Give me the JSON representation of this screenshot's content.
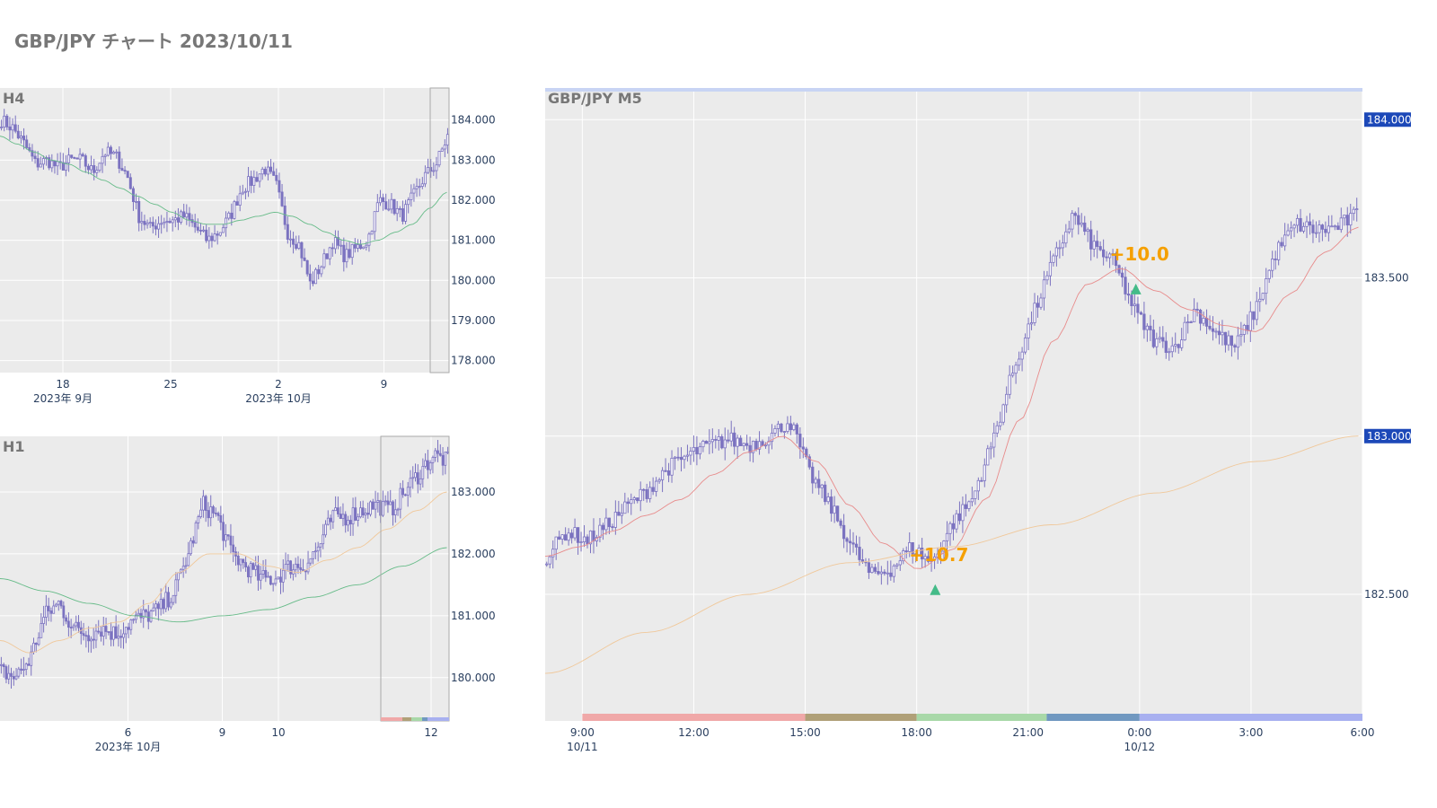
{
  "page": {
    "title": "GBP/JPY チャート 2023/10/11"
  },
  "colors": {
    "plot_bg": "#ebebeb",
    "grid": "#ffffff",
    "candle": "#7b72c0",
    "ma_short": "#e88b8b",
    "ma_mid": "#f0c89a",
    "ma_long": "#66bb88",
    "price_badge": "#1c48b8",
    "annotation": "#f5a000",
    "marker": "#44bb88",
    "session_asia": "#f0a8a8",
    "session_overlap": "#b0a078",
    "session_europe": "#a8d8a8",
    "session_ny_overlap": "#7098c0",
    "session_ny": "#a8b0f0"
  },
  "chart_data": [
    {
      "id": "h4",
      "type": "candlestick",
      "title": "H4",
      "y_ticks": [
        "184.000",
        "183.000",
        "182.000",
        "181.000",
        "180.000",
        "179.000",
        "178.000"
      ],
      "y_tick_values": [
        184,
        183,
        182,
        181,
        180,
        179,
        178
      ],
      "ylim": [
        177.7,
        184.8
      ],
      "x_ticks": [
        {
          "label": "18",
          "sub": "2023年 9月"
        },
        {
          "label": "25",
          "sub": ""
        },
        {
          "label": "2",
          "sub": "2023年 10月"
        },
        {
          "label": "9",
          "sub": ""
        }
      ],
      "close": [
        184.0,
        183.8,
        183.4,
        182.9,
        183.0,
        182.8,
        183.0,
        183.0,
        182.7,
        183.2,
        183.1,
        182.6,
        181.6,
        181.3,
        181.5,
        181.5,
        181.6,
        181.3,
        181.0,
        181.2,
        181.6,
        182.3,
        182.5,
        182.8,
        182.4,
        181.2,
        180.9,
        179.9,
        180.4,
        181.0,
        180.6,
        180.8,
        181.0,
        182.0,
        181.9,
        181.6,
        182.1,
        182.6,
        182.9,
        183.6
      ],
      "ma_long": [
        183.6,
        183.4,
        183.2,
        183.0,
        182.9,
        182.7,
        182.5,
        182.3,
        182.1,
        181.9,
        181.7,
        181.5,
        181.4,
        181.4,
        181.5,
        181.6,
        181.7,
        181.6,
        181.4,
        181.2,
        181.0,
        180.9,
        181.0,
        181.2,
        181.4,
        181.8,
        182.2
      ]
    },
    {
      "id": "h1",
      "type": "candlestick",
      "title": "H1",
      "y_ticks": [
        "183.000",
        "182.000",
        "181.000",
        "180.000"
      ],
      "y_tick_values": [
        183,
        182,
        181,
        180
      ],
      "ylim": [
        179.3,
        183.9
      ],
      "x_ticks": [
        {
          "label": "6",
          "sub": "2023年 10月"
        },
        {
          "label": "9",
          "sub": ""
        },
        {
          "label": "10",
          "sub": ""
        },
        {
          "label": "12",
          "sub": ""
        }
      ],
      "close": [
        180.1,
        180.0,
        180.3,
        181.0,
        181.2,
        180.8,
        180.7,
        180.8,
        180.7,
        180.9,
        181.0,
        181.1,
        181.4,
        182.0,
        182.8,
        182.6,
        182.0,
        181.8,
        181.6,
        181.6,
        181.8,
        181.8,
        182.1,
        182.6,
        182.6,
        182.7,
        182.8,
        182.7,
        183.0,
        183.3,
        183.6,
        183.5
      ],
      "ma_mid": [
        180.6,
        180.4,
        180.6,
        180.8,
        180.9,
        181.2,
        181.7,
        182.0,
        182.0,
        181.8,
        181.7,
        181.9,
        182.1,
        182.4,
        182.7,
        183.0
      ],
      "ma_long": [
        181.6,
        181.4,
        181.2,
        181.0,
        180.9,
        181.0,
        181.1,
        181.3,
        181.5,
        181.8,
        182.1
      ]
    },
    {
      "id": "m5",
      "type": "candlestick",
      "title": "GBP/JPY M5",
      "y_ticks": [
        "184.000",
        "183.500",
        "183.000",
        "182.500"
      ],
      "y_tick_values": [
        184.0,
        183.5,
        183.0,
        182.5
      ],
      "highlight_levels": [
        "184.000",
        "183.000"
      ],
      "ylim": [
        182.1,
        184.1
      ],
      "x_ticks": [
        {
          "label": "9:00",
          "sub": "10/11"
        },
        {
          "label": "12:00",
          "sub": ""
        },
        {
          "label": "15:00",
          "sub": ""
        },
        {
          "label": "18:00",
          "sub": ""
        },
        {
          "label": "21:00",
          "sub": ""
        },
        {
          "label": "0:00",
          "sub": "10/12"
        },
        {
          "label": "3:00",
          "sub": ""
        },
        {
          "label": "6:00",
          "sub": ""
        }
      ],
      "x_range_hours": [
        8.0,
        30.0
      ],
      "close": [
        182.62,
        182.7,
        182.67,
        182.72,
        182.78,
        182.83,
        182.9,
        182.94,
        182.97,
        182.99,
        182.97,
        183.0,
        183.05,
        182.88,
        182.78,
        182.66,
        182.56,
        182.58,
        182.65,
        182.6,
        182.72,
        182.8,
        182.98,
        183.2,
        183.38,
        183.55,
        183.7,
        183.6,
        183.55,
        183.4,
        183.3,
        183.28,
        183.4,
        183.33,
        183.28,
        183.4,
        183.58,
        183.67,
        183.65,
        183.66,
        183.7
      ],
      "ma_short": [
        182.62,
        182.65,
        182.7,
        182.75,
        182.8,
        182.88,
        182.95,
        183.0,
        182.92,
        182.78,
        182.66,
        182.58,
        182.64,
        182.8,
        183.05,
        183.3,
        183.48,
        183.53,
        183.46,
        183.4,
        183.35,
        183.33,
        183.45,
        183.58,
        183.66
      ],
      "ma_mid": [
        182.25,
        182.38,
        182.5,
        182.6,
        182.65,
        182.72,
        182.82,
        182.92,
        183.0
      ],
      "annotations": [
        {
          "text": "+10.7",
          "x_hour": 18.5,
          "y": 182.6
        },
        {
          "text": "+10.0",
          "x_hour": 23.9,
          "y": 183.55
        }
      ],
      "sessions": [
        {
          "name": "asia",
          "from_hour": 9.0,
          "to_hour": 15.0
        },
        {
          "name": "overlap",
          "from_hour": 15.0,
          "to_hour": 18.0
        },
        {
          "name": "europe",
          "from_hour": 18.0,
          "to_hour": 21.5
        },
        {
          "name": "ny_overlap",
          "from_hour": 21.5,
          "to_hour": 24.0
        },
        {
          "name": "ny",
          "from_hour": 24.0,
          "to_hour": 30.0
        }
      ]
    }
  ]
}
